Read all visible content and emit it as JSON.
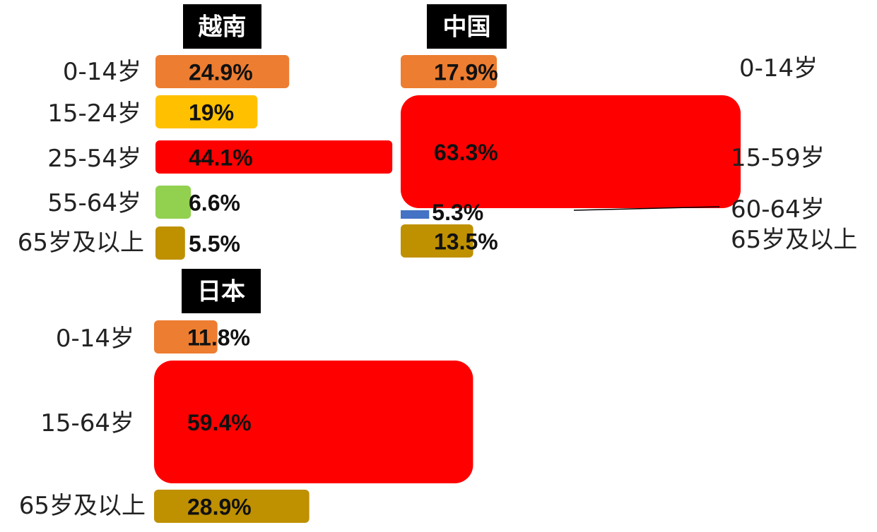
{
  "chart_data": [
    {
      "type": "bar",
      "title": "越南",
      "unit": "%",
      "categories": [
        "0-14岁",
        "15-24岁",
        "25-54岁",
        "55-64岁",
        "65岁及以上"
      ],
      "value_labels": [
        "24.9%",
        "19%",
        "44.1%",
        "6.6%",
        "5.5%"
      ],
      "values": [
        24.9,
        19,
        44.1,
        6.6,
        5.5
      ],
      "colors": [
        "#ED7D31",
        "#FFC000",
        "#FF0000",
        "#92D050",
        "#BF9000"
      ]
    },
    {
      "type": "bar",
      "title": "中国",
      "unit": "%",
      "categories": [
        "0-14岁",
        "15-59岁",
        "60-64岁",
        "65岁及以上"
      ],
      "value_labels": [
        "17.9%",
        "63.3%",
        "5.3%",
        "13.5%"
      ],
      "values": [
        17.9,
        63.3,
        5.3,
        13.5
      ],
      "colors": [
        "#ED7D31",
        "#FF0000",
        "#4472C4",
        "#BF9000"
      ]
    },
    {
      "type": "bar",
      "title": "日本",
      "unit": "%",
      "categories": [
        "0-14岁",
        "15-64岁",
        "65岁及以上"
      ],
      "value_labels": [
        "11.8%",
        "59.4%",
        "28.9%"
      ],
      "values": [
        11.8,
        59.4,
        28.9
      ],
      "colors": [
        "#ED7D31",
        "#FF0000",
        "#BF9000"
      ]
    }
  ]
}
